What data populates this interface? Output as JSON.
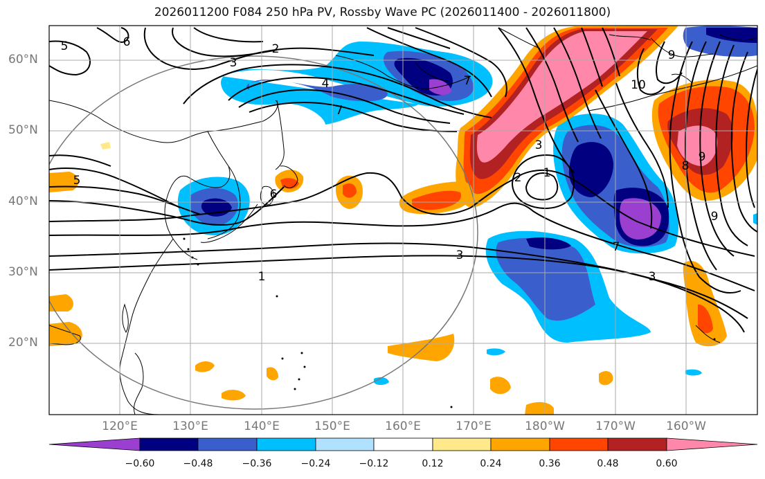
{
  "title": "2026011200 F084 250 hPa PV, Rossby Wave PC (2026011400 - 2026011800)",
  "latitude_labels": [
    "60°N",
    "50°N",
    "40°N",
    "30°N",
    "20°N"
  ],
  "longitude_labels": [
    "120°E",
    "130°E",
    "140°E",
    "150°E",
    "160°E",
    "170°E",
    "180°W",
    "170°W",
    "160°W"
  ],
  "contour_labels": [
    "6",
    "5",
    "2",
    "3",
    "4",
    "7",
    "1",
    "5",
    "6",
    "3",
    "7",
    "9",
    "3",
    "7",
    "10",
    "8",
    "9",
    "9",
    "2",
    "1",
    "3"
  ],
  "colorbar": {
    "tick_labels": [
      "−0.60",
      "−0.48",
      "−0.36",
      "−0.24",
      "−0.12",
      "0.12",
      "0.24",
      "0.36",
      "0.48",
      "0.60"
    ],
    "colors": [
      "#9b3fd1",
      "#000080",
      "#3a5fcd",
      "#00bfff",
      "#b0e2ff",
      "#ffffff",
      "#ffe98a",
      "#ffa500",
      "#ff4500",
      "#b22222",
      "#ff88aa"
    ]
  },
  "colors": {
    "frame": "#000000",
    "grid": "#aaaaaa",
    "axis_text": "#777777"
  }
}
